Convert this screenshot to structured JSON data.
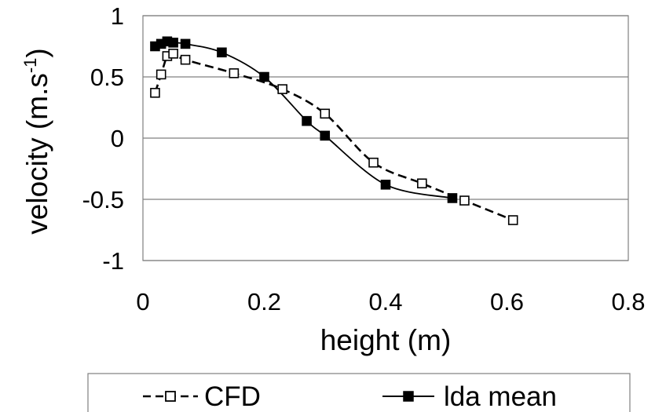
{
  "chart_data": {
    "type": "line",
    "xlabel": "height (m)",
    "ylabel": "velocity (m.s",
    "ylabel_superscript": "-1",
    "ylabel_suffix": ")",
    "xlim": [
      0,
      0.8
    ],
    "ylim": [
      -1,
      1
    ],
    "x_ticks": [
      "0",
      "0.2",
      "0.4",
      "0.6",
      "0.8"
    ],
    "y_ticks": [
      "1",
      "0.5",
      "0",
      "-0.5",
      "-1"
    ],
    "grid": "horizontal",
    "legend_position": "bottom",
    "series": [
      {
        "name": "CFD",
        "marker": "open-square",
        "line": "dashed",
        "x": [
          0.02,
          0.03,
          0.04,
          0.05,
          0.07,
          0.15,
          0.23,
          0.3,
          0.38,
          0.46,
          0.53,
          0.61
        ],
        "y": [
          0.37,
          0.52,
          0.67,
          0.69,
          0.64,
          0.53,
          0.4,
          0.2,
          -0.2,
          -0.37,
          -0.51,
          -0.67
        ]
      },
      {
        "name": "lda mean",
        "marker": "filled-square",
        "line": "solid",
        "x": [
          0.02,
          0.03,
          0.04,
          0.05,
          0.07,
          0.13,
          0.2,
          0.27,
          0.3,
          0.4,
          0.51
        ],
        "y": [
          0.75,
          0.77,
          0.79,
          0.78,
          0.77,
          0.7,
          0.5,
          0.14,
          0.02,
          -0.38,
          -0.49
        ]
      }
    ]
  }
}
